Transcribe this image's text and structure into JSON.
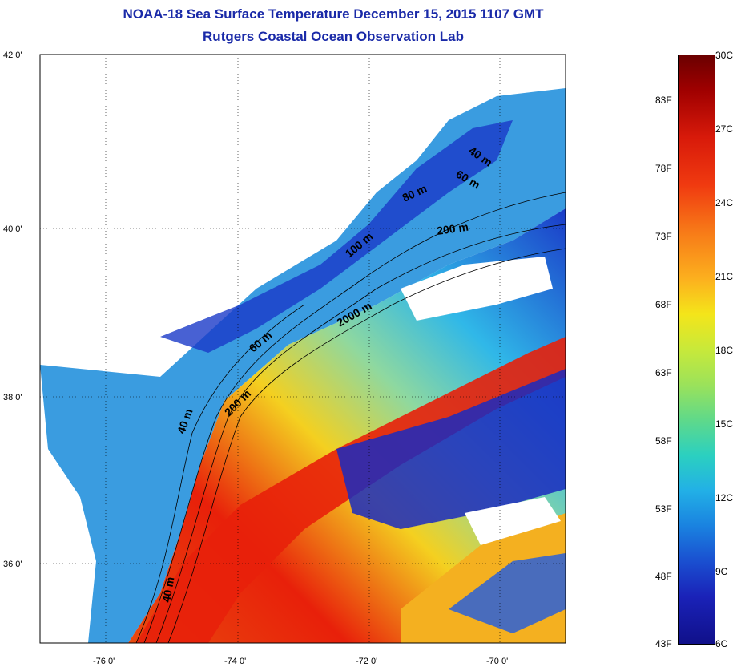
{
  "title": {
    "line1": "NOAA-18 Sea Surface Temperature December 15, 2015 1107 GMT",
    "line2": "Rutgers Coastal Ocean Observation Lab"
  },
  "map": {
    "lat_labels": [
      "42 0'",
      "40 0'",
      "38 0'",
      "36 0'"
    ],
    "lon_labels": [
      "-76 0'",
      "-74 0'",
      "-72 0'",
      "-70 0'"
    ],
    "contour_labels": [
      "40 m",
      "60 m",
      "80 m",
      "200 m",
      "100 m",
      "2000 m",
      "60 m",
      "200 m",
      "40 m",
      "40 m"
    ]
  },
  "colorbar": {
    "fahrenheit": [
      "83F",
      "78F",
      "73F",
      "68F",
      "63F",
      "58F",
      "53F",
      "48F",
      "43F"
    ],
    "celsius": [
      "30C",
      "27C",
      "24C",
      "21C",
      "18C",
      "15C",
      "12C",
      "9C",
      "6C"
    ]
  },
  "colors": {
    "title": "#1a2aa8",
    "land": "#ffffff",
    "cold": "#1a22b8",
    "warm": "#e8200a"
  }
}
